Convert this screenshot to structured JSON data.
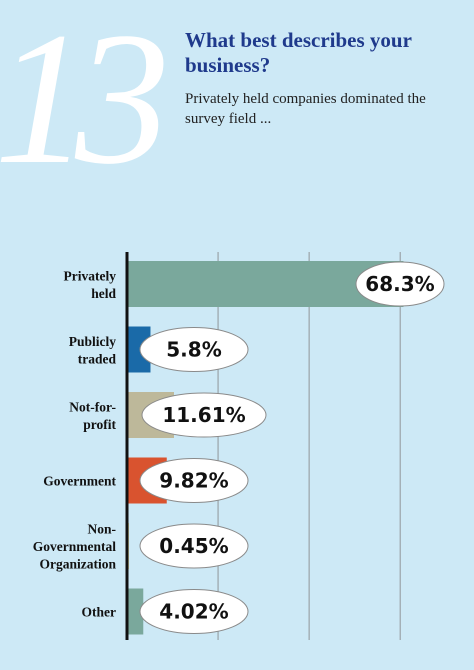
{
  "header": {
    "number": "13",
    "question": "What best describes your business?",
    "subtitle": "Privately held companies dominated the survey field ..."
  },
  "chart_data": {
    "type": "bar",
    "orientation": "horizontal",
    "categories": [
      [
        "Privately",
        "held"
      ],
      [
        "Publicly",
        "traded"
      ],
      [
        "Not-for-",
        "profit"
      ],
      [
        "Government"
      ],
      [
        "Non-",
        "Governmental",
        "Organization"
      ],
      [
        "Other"
      ]
    ],
    "values": [
      68.3,
      5.8,
      11.61,
      9.82,
      0.45,
      4.02
    ],
    "value_labels": [
      "68.3%",
      "5.8%",
      "11.61%",
      "9.82%",
      "0.45%",
      "4.02%"
    ],
    "colors": [
      "#7aa89c",
      "#1a6aa8",
      "#bdb89a",
      "#d9532f",
      "#d8d2a0",
      "#7aa89c"
    ],
    "xlim": [
      0,
      84
    ],
    "grid": true,
    "gridlines": [
      22.5,
      45,
      67.5
    ]
  }
}
